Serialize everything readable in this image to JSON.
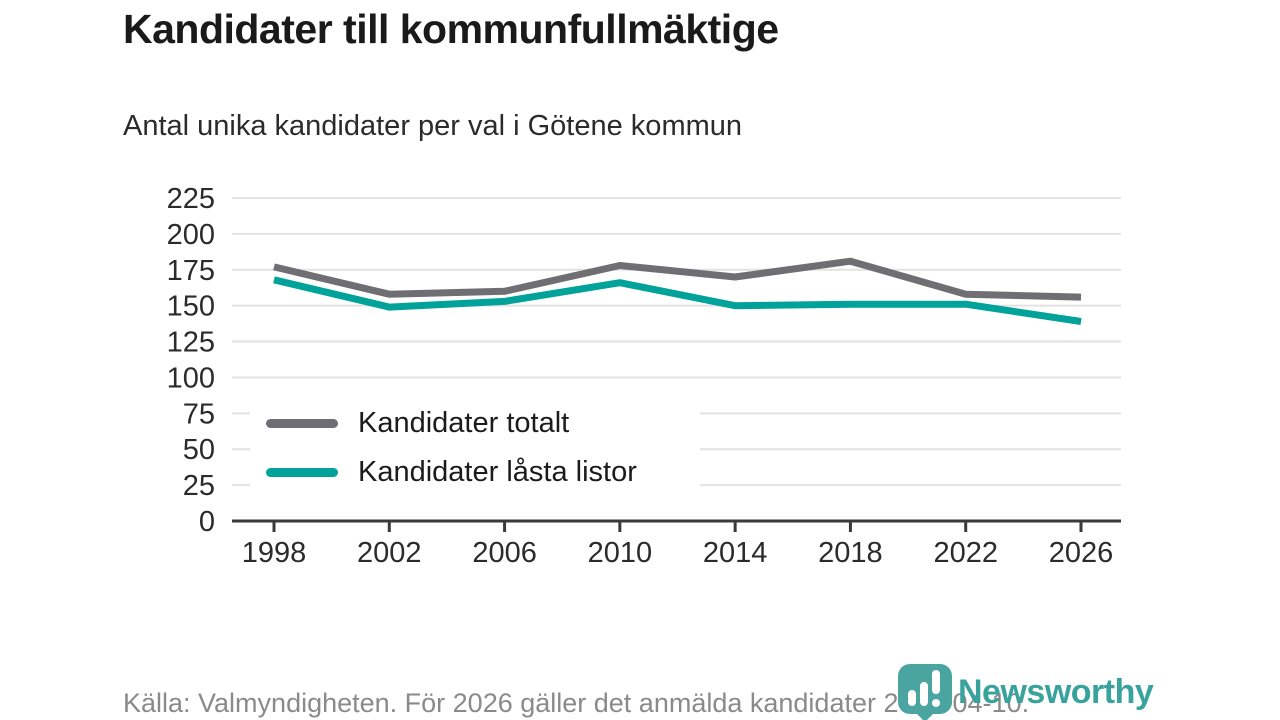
{
  "header": {
    "title": "Kandidater till kommunfullmäktige",
    "subtitle": "Antal unika kandidater per val i Götene kommun"
  },
  "chart_data": {
    "type": "line",
    "x": [
      1998,
      2002,
      2006,
      2010,
      2014,
      2018,
      2022,
      2026
    ],
    "series": [
      {
        "name": "Kandidater totalt",
        "color": "#6e6e73",
        "values": [
          177,
          158,
          160,
          178,
          170,
          181,
          158,
          156
        ]
      },
      {
        "name": "Kandidater låsta listor",
        "color": "#00a29a",
        "values": [
          168,
          149,
          153,
          166,
          150,
          151,
          151,
          139
        ]
      }
    ],
    "ylim": [
      0,
      225
    ],
    "ytick_step": 25,
    "grid": true,
    "legend_position": "inside-bottom-left",
    "gridline_color": "#e2e2e2",
    "axis_color": "#3a3a3a",
    "tick_label_color": "#2b2b2b"
  },
  "footer": {
    "source": "Källa: Valmyndigheten. För 2026 gäller det anmälda kandidater 2026-04-10."
  },
  "branding": {
    "name": "Newsworthy",
    "color": "#38a29c",
    "icon": "bar-chart-pin-icon",
    "icon_color": "#4aa5a1"
  }
}
